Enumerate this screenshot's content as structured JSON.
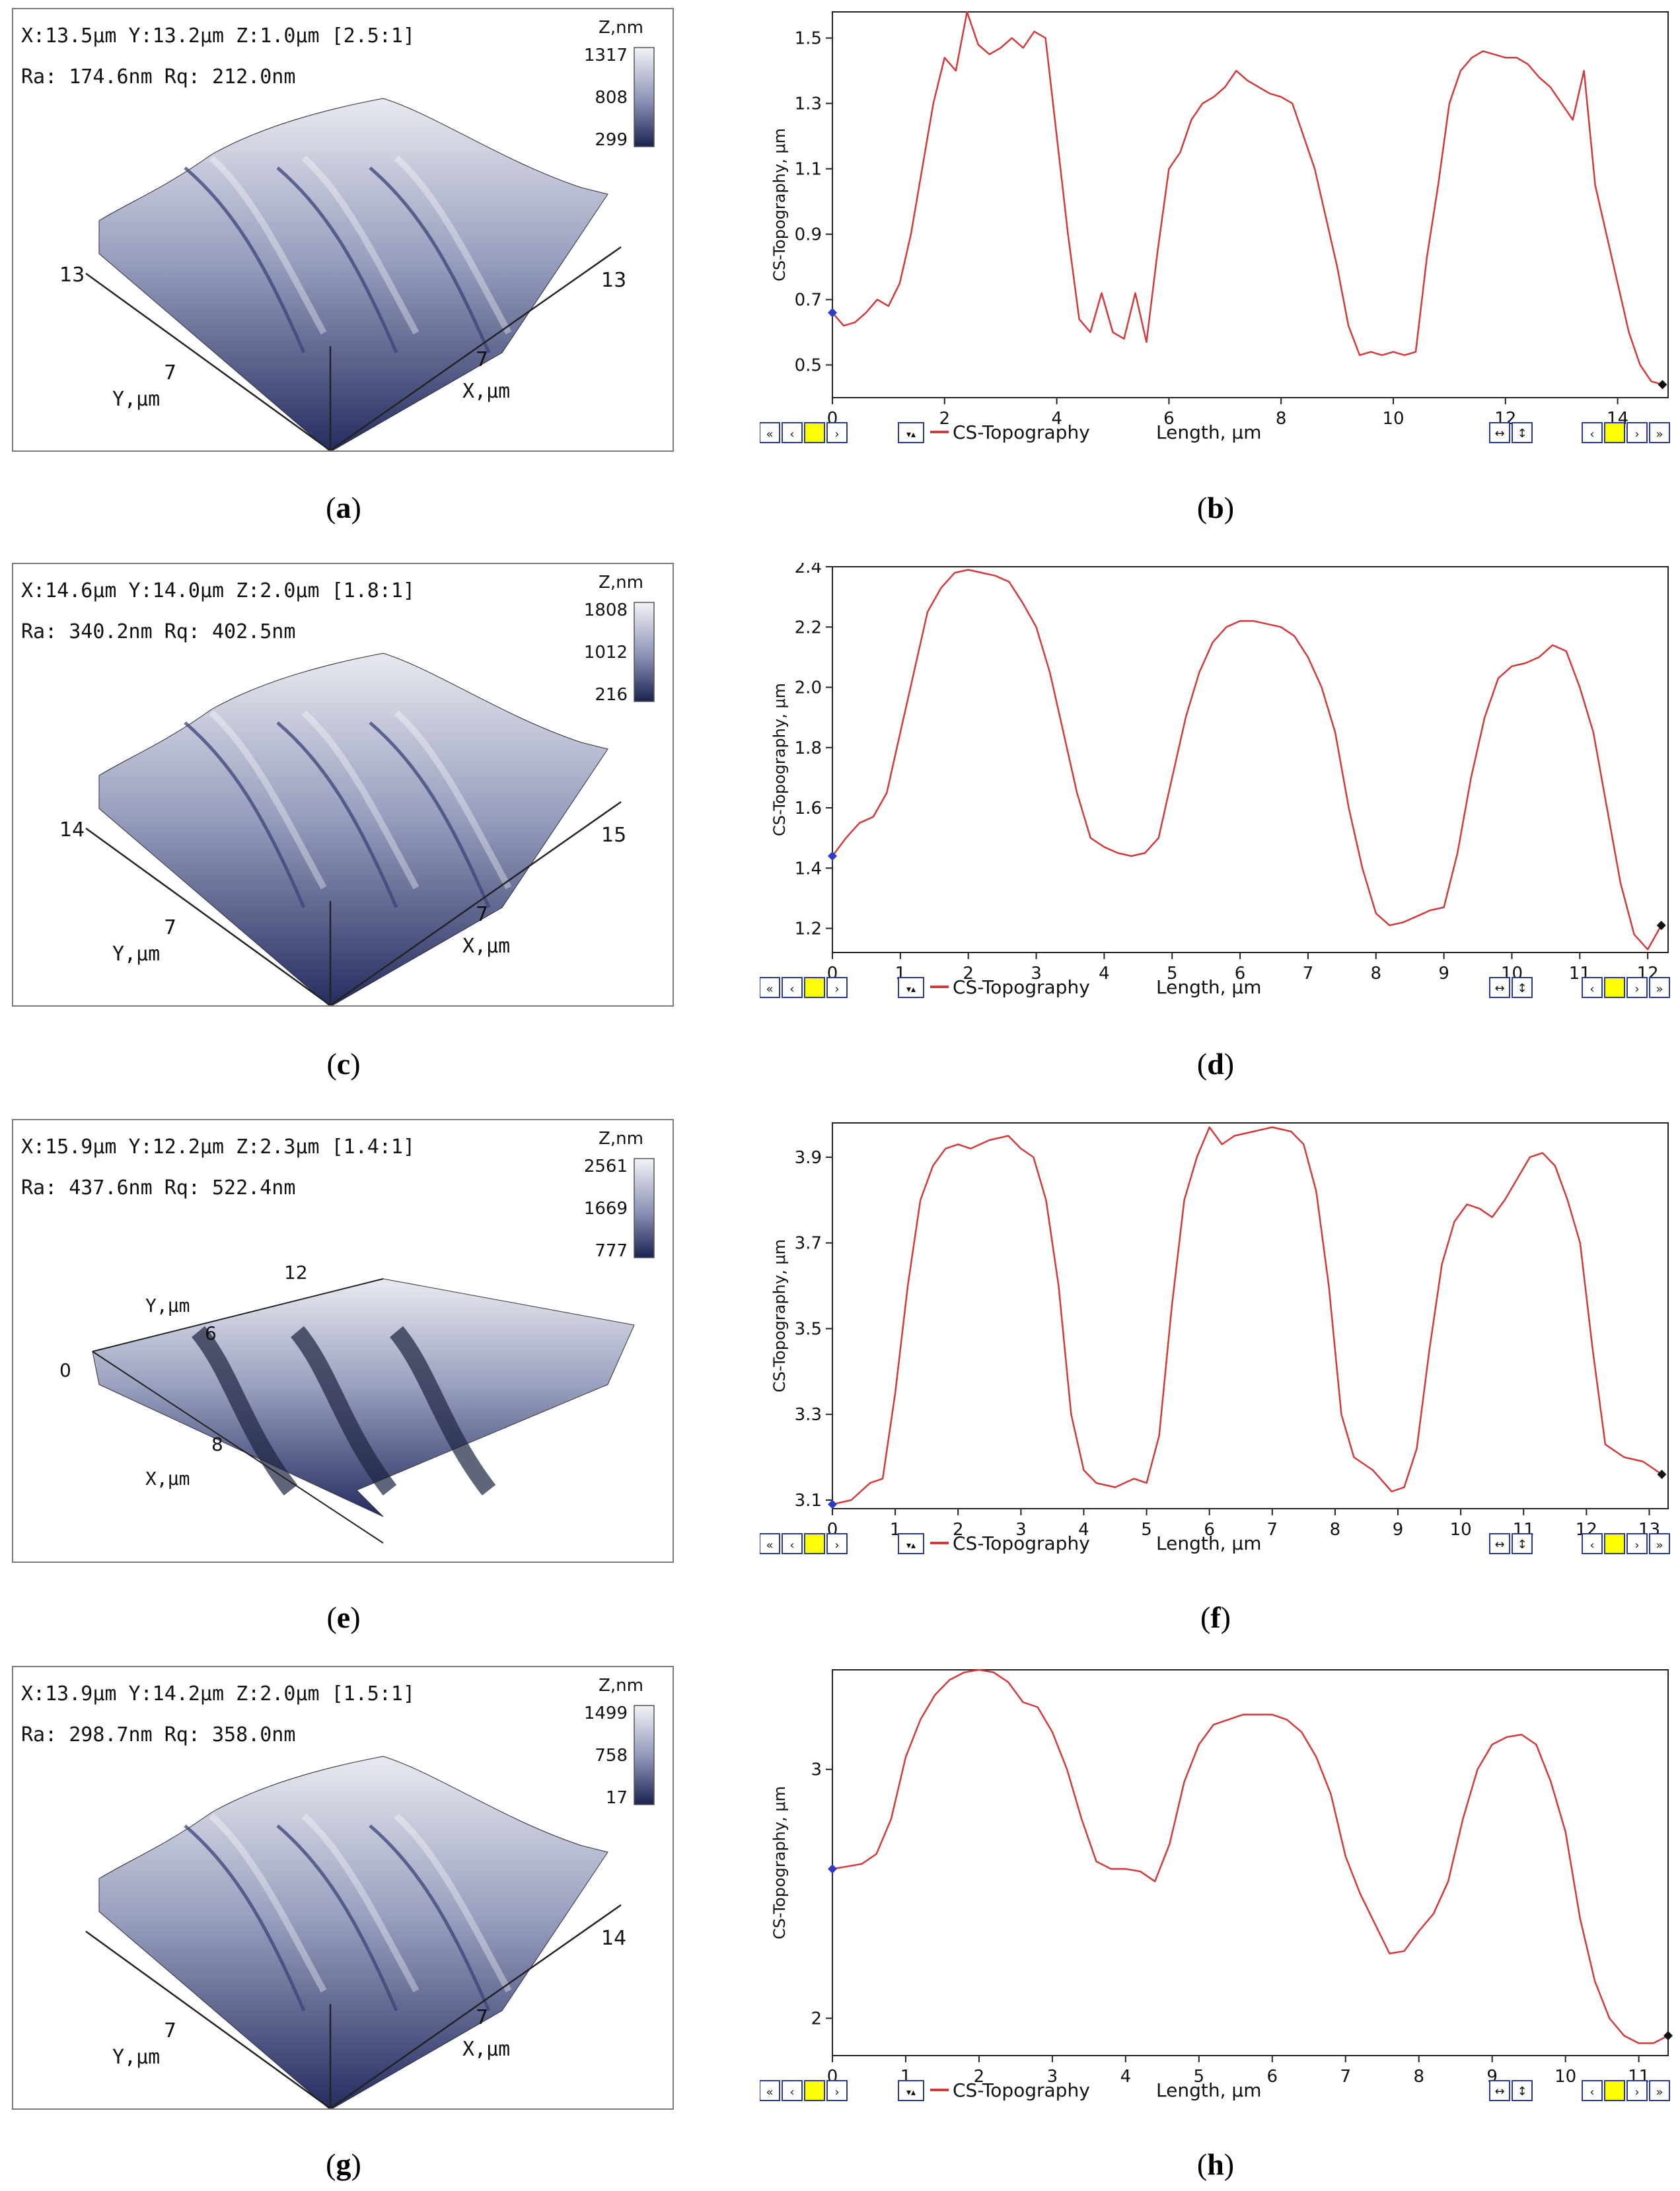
{
  "colors": {
    "curve": "#d23a3a",
    "surface_dark": "#1a2350",
    "surface_light": "#f2f3f7",
    "nav_yellow": "#ffff00",
    "nav_blue": "#2a3a9a"
  },
  "afm": [
    {
      "id": "a",
      "caption": "a",
      "info1": "X:13.5μm  Y:13.2μm  Z:1.0μm [2.5:1]",
      "info2": "Ra: 174.6nm  Rq: 212.0nm",
      "z_title": "Z,nm",
      "z_ticks": [
        "1317",
        "808",
        "299"
      ],
      "y_label": "Y,μm",
      "x_label": "X,μm",
      "y_mid": "7",
      "y_end": "13",
      "x_mid": "7",
      "x_end": "13",
      "ridges": 3,
      "variant": "std"
    },
    {
      "id": "c",
      "caption": "c",
      "info1": "X:14.6μm  Y:14.0μm  Z:2.0μm [1.8:1]",
      "info2": "Ra: 340.2nm  Rq: 402.5nm",
      "z_title": "Z,nm",
      "z_ticks": [
        "1808",
        "1012",
        "216"
      ],
      "y_label": "Y,μm",
      "x_label": "X,μm",
      "y_mid": "7",
      "y_end": "14",
      "x_mid": "7",
      "x_end": "15",
      "ridges": 3,
      "variant": "std"
    },
    {
      "id": "e",
      "caption": "e",
      "info1": "X:15.9μm  Y:12.2μm  Z:2.3μm [1.4:1]",
      "info2": "Ra: 437.6nm  Rq: 522.4nm",
      "z_title": "Z,nm",
      "z_ticks": [
        "2561",
        "1669",
        "777"
      ],
      "y_label": "Y,μm",
      "x_label": "X,μm",
      "y_mid": "6",
      "y_end": "12",
      "y_zero": "0",
      "x_mid": "8",
      "x_end": "",
      "ridges": 3,
      "variant": "rot"
    },
    {
      "id": "g",
      "caption": "g",
      "info1": "X:13.9μm  Y:14.2μm  Z:2.0μm [1.5:1]",
      "info2": "Ra: 298.7nm  Rq: 358.0nm",
      "z_title": "Z,nm",
      "z_ticks": [
        "1499",
        "758",
        "17"
      ],
      "y_label": "Y,μm",
      "x_label": "X,μm",
      "y_mid": "7",
      "y_end": "",
      "x_mid": "7",
      "x_end": "14",
      "ridges": 3,
      "variant": "std"
    }
  ],
  "chart_data": [
    {
      "id": "b",
      "caption": "b",
      "type": "line",
      "series_name": "CS-Topography",
      "xlabel": "Length, μm",
      "ylabel": "CS-Topography, μm",
      "xlim": [
        0,
        14.9
      ],
      "ylim": [
        0.4,
        1.58
      ],
      "xticks": [
        0,
        2,
        4,
        6,
        8,
        10,
        12,
        14
      ],
      "yticks": [
        0.5,
        0.7,
        0.9,
        1.1,
        1.3,
        1.5
      ],
      "ytick_labels": [
        "0.5",
        "0.7",
        "0.9",
        "1.1",
        "1.3",
        "1.5"
      ],
      "x": [
        0,
        0.2,
        0.4,
        0.6,
        0.8,
        1.0,
        1.2,
        1.4,
        1.6,
        1.8,
        2.0,
        2.2,
        2.4,
        2.6,
        2.8,
        3.0,
        3.2,
        3.4,
        3.6,
        3.8,
        4.0,
        4.2,
        4.4,
        4.6,
        4.8,
        5.0,
        5.2,
        5.4,
        5.6,
        5.8,
        6.0,
        6.2,
        6.4,
        6.6,
        6.8,
        7.0,
        7.2,
        7.4,
        7.6,
        7.8,
        8.0,
        8.2,
        8.4,
        8.6,
        8.8,
        9.0,
        9.2,
        9.4,
        9.6,
        9.8,
        10.0,
        10.2,
        10.4,
        10.6,
        10.8,
        11.0,
        11.2,
        11.4,
        11.6,
        11.8,
        12.0,
        12.2,
        12.4,
        12.6,
        12.8,
        13.0,
        13.2,
        13.4,
        13.6,
        13.8,
        14.0,
        14.2,
        14.4,
        14.6,
        14.8
      ],
      "values": [
        0.66,
        0.62,
        0.63,
        0.66,
        0.7,
        0.68,
        0.75,
        0.9,
        1.1,
        1.3,
        1.44,
        1.4,
        1.58,
        1.48,
        1.45,
        1.47,
        1.5,
        1.47,
        1.52,
        1.5,
        1.2,
        0.9,
        0.64,
        0.6,
        0.72,
        0.6,
        0.58,
        0.72,
        0.57,
        0.85,
        1.1,
        1.15,
        1.25,
        1.3,
        1.32,
        1.35,
        1.4,
        1.37,
        1.35,
        1.33,
        1.32,
        1.3,
        1.2,
        1.1,
        0.95,
        0.8,
        0.62,
        0.53,
        0.54,
        0.53,
        0.54,
        0.53,
        0.54,
        0.83,
        1.05,
        1.3,
        1.4,
        1.44,
        1.46,
        1.45,
        1.44,
        1.44,
        1.42,
        1.38,
        1.35,
        1.3,
        1.25,
        1.4,
        1.05,
        0.9,
        0.75,
        0.6,
        0.5,
        0.45,
        0.44
      ]
    },
    {
      "id": "d",
      "caption": "d",
      "type": "line",
      "series_name": "CS-Topography",
      "xlabel": "Length, μm",
      "ylabel": "CS-Topography, μm",
      "xlim": [
        0,
        12.3
      ],
      "ylim": [
        1.12,
        2.4
      ],
      "xticks": [
        0,
        1,
        2,
        3,
        4,
        5,
        6,
        7,
        8,
        9,
        10,
        11,
        12
      ],
      "yticks": [
        1.2,
        1.4,
        1.6,
        1.8,
        2.0,
        2.2,
        2.4
      ],
      "ytick_labels": [
        "1.2",
        "1.4",
        "1.6",
        "1.8",
        "2.0",
        "2.2",
        "2.4"
      ],
      "x": [
        0,
        0.2,
        0.4,
        0.6,
        0.8,
        1.0,
        1.2,
        1.4,
        1.6,
        1.8,
        2.0,
        2.2,
        2.4,
        2.6,
        2.8,
        3.0,
        3.2,
        3.4,
        3.6,
        3.8,
        4.0,
        4.2,
        4.4,
        4.6,
        4.8,
        5.0,
        5.2,
        5.4,
        5.6,
        5.8,
        6.0,
        6.2,
        6.4,
        6.6,
        6.8,
        7.0,
        7.2,
        7.4,
        7.6,
        7.8,
        8.0,
        8.2,
        8.4,
        8.6,
        8.8,
        9.0,
        9.2,
        9.4,
        9.6,
        9.8,
        10.0,
        10.2,
        10.4,
        10.6,
        10.8,
        11.0,
        11.2,
        11.4,
        11.6,
        11.8,
        12.0,
        12.2
      ],
      "values": [
        1.44,
        1.5,
        1.55,
        1.57,
        1.65,
        1.85,
        2.05,
        2.25,
        2.33,
        2.38,
        2.39,
        2.38,
        2.37,
        2.35,
        2.28,
        2.2,
        2.05,
        1.85,
        1.65,
        1.5,
        1.47,
        1.45,
        1.44,
        1.45,
        1.5,
        1.7,
        1.9,
        2.05,
        2.15,
        2.2,
        2.22,
        2.22,
        2.21,
        2.2,
        2.17,
        2.1,
        2.0,
        1.85,
        1.6,
        1.4,
        1.25,
        1.21,
        1.22,
        1.24,
        1.26,
        1.27,
        1.45,
        1.7,
        1.9,
        2.03,
        2.07,
        2.08,
        2.1,
        2.14,
        2.12,
        2.0,
        1.85,
        1.6,
        1.35,
        1.18,
        1.13,
        1.21
      ]
    },
    {
      "id": "f",
      "caption": "f",
      "type": "line",
      "series_name": "CS-Topography",
      "xlabel": "Length, μm",
      "ylabel": "CS-Topography, μm",
      "xlim": [
        0,
        13.3
      ],
      "ylim": [
        3.08,
        3.98
      ],
      "xticks": [
        0,
        1,
        2,
        3,
        4,
        5,
        6,
        7,
        8,
        9,
        10,
        11,
        12,
        13
      ],
      "yticks": [
        3.1,
        3.3,
        3.5,
        3.7,
        3.9
      ],
      "ytick_labels": [
        "3.1",
        "3.3",
        "3.5",
        "3.7",
        "3.9"
      ],
      "x": [
        0,
        0.3,
        0.6,
        0.8,
        1.0,
        1.2,
        1.4,
        1.6,
        1.8,
        2.0,
        2.2,
        2.5,
        2.8,
        3.0,
        3.2,
        3.4,
        3.6,
        3.8,
        4.0,
        4.2,
        4.5,
        4.8,
        5.0,
        5.2,
        5.4,
        5.6,
        5.8,
        6.0,
        6.2,
        6.4,
        6.7,
        7.0,
        7.3,
        7.5,
        7.7,
        7.9,
        8.1,
        8.3,
        8.6,
        8.9,
        9.1,
        9.3,
        9.5,
        9.7,
        9.9,
        10.1,
        10.3,
        10.5,
        10.7,
        10.9,
        11.1,
        11.3,
        11.5,
        11.7,
        11.9,
        12.1,
        12.3,
        12.6,
        12.9,
        13.2
      ],
      "values": [
        3.09,
        3.1,
        3.14,
        3.15,
        3.35,
        3.6,
        3.8,
        3.88,
        3.92,
        3.93,
        3.92,
        3.94,
        3.95,
        3.92,
        3.9,
        3.8,
        3.6,
        3.3,
        3.17,
        3.14,
        3.13,
        3.15,
        3.14,
        3.25,
        3.55,
        3.8,
        3.9,
        3.97,
        3.93,
        3.95,
        3.96,
        3.97,
        3.96,
        3.93,
        3.82,
        3.6,
        3.3,
        3.2,
        3.17,
        3.12,
        3.13,
        3.22,
        3.45,
        3.65,
        3.75,
        3.79,
        3.78,
        3.76,
        3.8,
        3.85,
        3.9,
        3.91,
        3.88,
        3.8,
        3.7,
        3.45,
        3.23,
        3.2,
        3.19,
        3.16
      ]
    },
    {
      "id": "h",
      "caption": "h",
      "type": "line",
      "series_name": "CS-Topography",
      "xlabel": "Length, μm",
      "ylabel": "CS-Topography, μm",
      "xlim": [
        0,
        11.4
      ],
      "ylim": [
        1.85,
        3.4
      ],
      "xticks": [
        0,
        1,
        2,
        3,
        4,
        5,
        6,
        7,
        8,
        9,
        10,
        11
      ],
      "yticks": [
        2,
        3
      ],
      "ytick_labels": [
        "2",
        "3"
      ],
      "x": [
        0,
        0.2,
        0.4,
        0.6,
        0.8,
        1.0,
        1.2,
        1.4,
        1.6,
        1.8,
        2.0,
        2.2,
        2.4,
        2.6,
        2.8,
        3.0,
        3.2,
        3.4,
        3.6,
        3.8,
        4.0,
        4.2,
        4.4,
        4.6,
        4.8,
        5.0,
        5.2,
        5.4,
        5.6,
        5.8,
        6.0,
        6.2,
        6.4,
        6.6,
        6.8,
        7.0,
        7.2,
        7.4,
        7.6,
        7.8,
        8.0,
        8.2,
        8.4,
        8.6,
        8.8,
        9.0,
        9.2,
        9.4,
        9.6,
        9.8,
        10.0,
        10.2,
        10.4,
        10.6,
        10.8,
        11.0,
        11.2,
        11.4
      ],
      "values": [
        2.6,
        2.61,
        2.62,
        2.66,
        2.8,
        3.05,
        3.2,
        3.3,
        3.36,
        3.39,
        3.4,
        3.39,
        3.35,
        3.27,
        3.25,
        3.15,
        3.0,
        2.8,
        2.63,
        2.6,
        2.6,
        2.59,
        2.55,
        2.7,
        2.95,
        3.1,
        3.18,
        3.2,
        3.22,
        3.22,
        3.22,
        3.2,
        3.15,
        3.05,
        2.9,
        2.65,
        2.5,
        2.38,
        2.26,
        2.27,
        2.35,
        2.42,
        2.55,
        2.8,
        3.0,
        3.1,
        3.13,
        3.14,
        3.1,
        2.95,
        2.75,
        2.4,
        2.15,
        2.0,
        1.93,
        1.9,
        1.9,
        1.93
      ]
    }
  ]
}
